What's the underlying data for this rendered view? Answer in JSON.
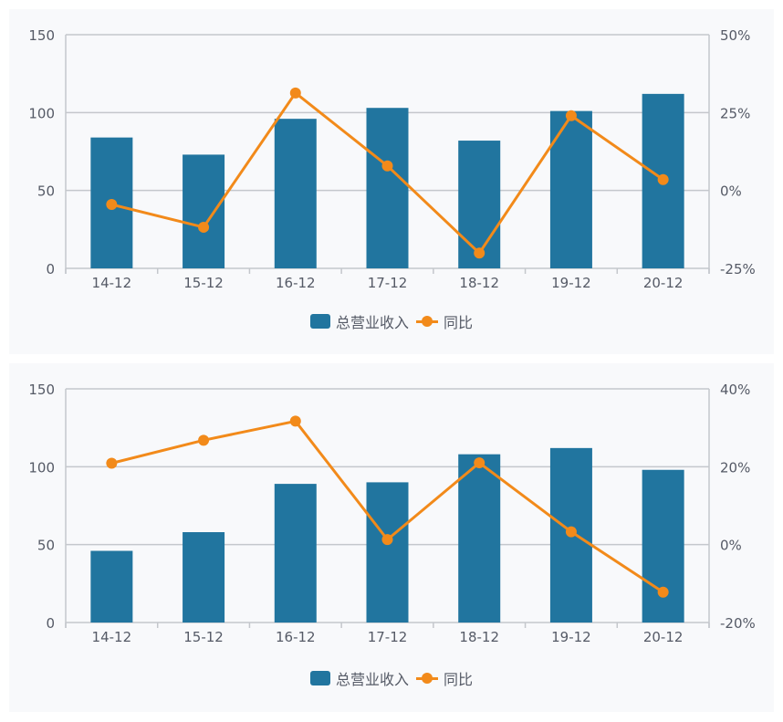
{
  "colors": {
    "bar": "#21759f",
    "line": "#f28a1a",
    "grid": "#c4c7cc",
    "text": "#555a66",
    "card_bg": "#f8f9fb"
  },
  "chart_data": [
    {
      "type": "bar+line",
      "categories": [
        "14-12",
        "15-12",
        "16-12",
        "17-12",
        "18-12",
        "19-12",
        "20-12"
      ],
      "series": [
        {
          "name": "总营业收入",
          "type": "bar",
          "axis": "left",
          "values": [
            84,
            73,
            96,
            103,
            82,
            101,
            112
          ]
        },
        {
          "name": "同比",
          "type": "line",
          "axis": "right",
          "values": [
            -4.5,
            -11.8,
            31.3,
            7.9,
            -20.1,
            24.0,
            3.5
          ]
        }
      ],
      "y_left": {
        "ticks": [
          "0",
          "50",
          "100",
          "150"
        ],
        "range": [
          0,
          150
        ]
      },
      "y_right": {
        "ticks": [
          "-25%",
          "0%",
          "25%",
          "50%"
        ],
        "range": [
          -25,
          50
        ]
      },
      "grid": true,
      "legend_position": "bottom"
    },
    {
      "type": "bar+line",
      "categories": [
        "14-12",
        "15-12",
        "16-12",
        "17-12",
        "18-12",
        "19-12",
        "20-12"
      ],
      "series": [
        {
          "name": "总营业收入",
          "type": "bar",
          "axis": "left",
          "values": [
            46,
            58,
            89,
            90,
            108,
            112,
            98
          ]
        },
        {
          "name": "同比",
          "type": "line",
          "axis": "right",
          "values": [
            20.9,
            26.8,
            31.7,
            1.3,
            21.0,
            3.3,
            -12.2
          ]
        }
      ],
      "y_left": {
        "ticks": [
          "0",
          "50",
          "100",
          "150"
        ],
        "range": [
          0,
          150
        ]
      },
      "y_right": {
        "ticks": [
          "-20%",
          "0%",
          "20%",
          "40%"
        ],
        "range": [
          -20,
          40
        ]
      },
      "grid": true,
      "legend_position": "bottom"
    }
  ],
  "legend": {
    "bar_label": "总营业收入",
    "line_label": "同比"
  }
}
